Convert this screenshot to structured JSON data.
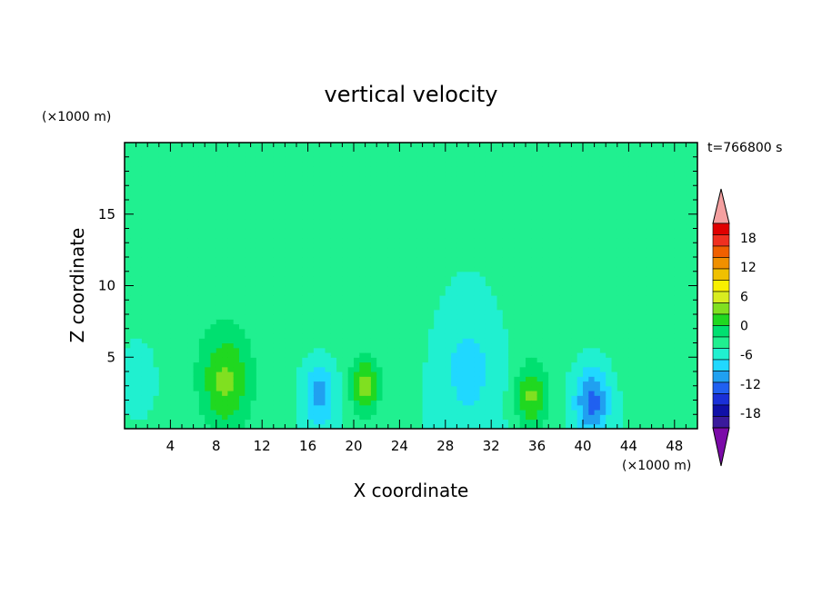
{
  "chart_data": {
    "type": "heatmap",
    "title": "vertical velocity",
    "xlabel": "X coordinate",
    "ylabel": "Z coordinate",
    "x_unit": "(×1000 m)",
    "y_unit": "(×1000 m)",
    "time_label": "t=766800 s",
    "xlim": [
      0,
      50
    ],
    "ylim": [
      0,
      20
    ],
    "x_ticks": [
      4,
      8,
      12,
      16,
      20,
      24,
      28,
      32,
      36,
      40,
      44,
      48
    ],
    "y_ticks": [
      5,
      10,
      15
    ],
    "colorbar": {
      "min": -21,
      "max": 21,
      "step": 3,
      "labels": [
        18,
        12,
        6,
        0,
        -6,
        -12,
        -18
      ],
      "extend": "both",
      "colors": [
        "#7b0aa8",
        "#3a1a9c",
        "#1010a8",
        "#1a30d8",
        "#2060f0",
        "#20a0f0",
        "#20d8ff",
        "#20f0d0",
        "#20f090",
        "#00e070",
        "#20d820",
        "#80e020",
        "#d8ec20",
        "#f8f000",
        "#f0c000",
        "#f09000",
        "#f06000",
        "#f03020",
        "#e00000",
        "#f4a0a0"
      ]
    },
    "features": [
      {
        "x": 8.8,
        "z": 3.2,
        "w": 2.2,
        "peak": 9
      },
      {
        "x": 21.0,
        "z": 3.0,
        "w": 1.2,
        "peak": 10
      },
      {
        "x": 35.5,
        "z": 2.2,
        "w": 1.4,
        "peak": 9
      },
      {
        "x": 17.0,
        "z": 2.5,
        "w": 1.4,
        "peak": -8
      },
      {
        "x": 40.8,
        "z": 2.0,
        "w": 1.5,
        "peak": -11
      },
      {
        "x": 30.0,
        "z": 4.5,
        "w": 3.0,
        "peak": -5
      },
      {
        "x": 1.2,
        "z": 4.0,
        "w": 1.5,
        "peak": -3
      }
    ]
  }
}
